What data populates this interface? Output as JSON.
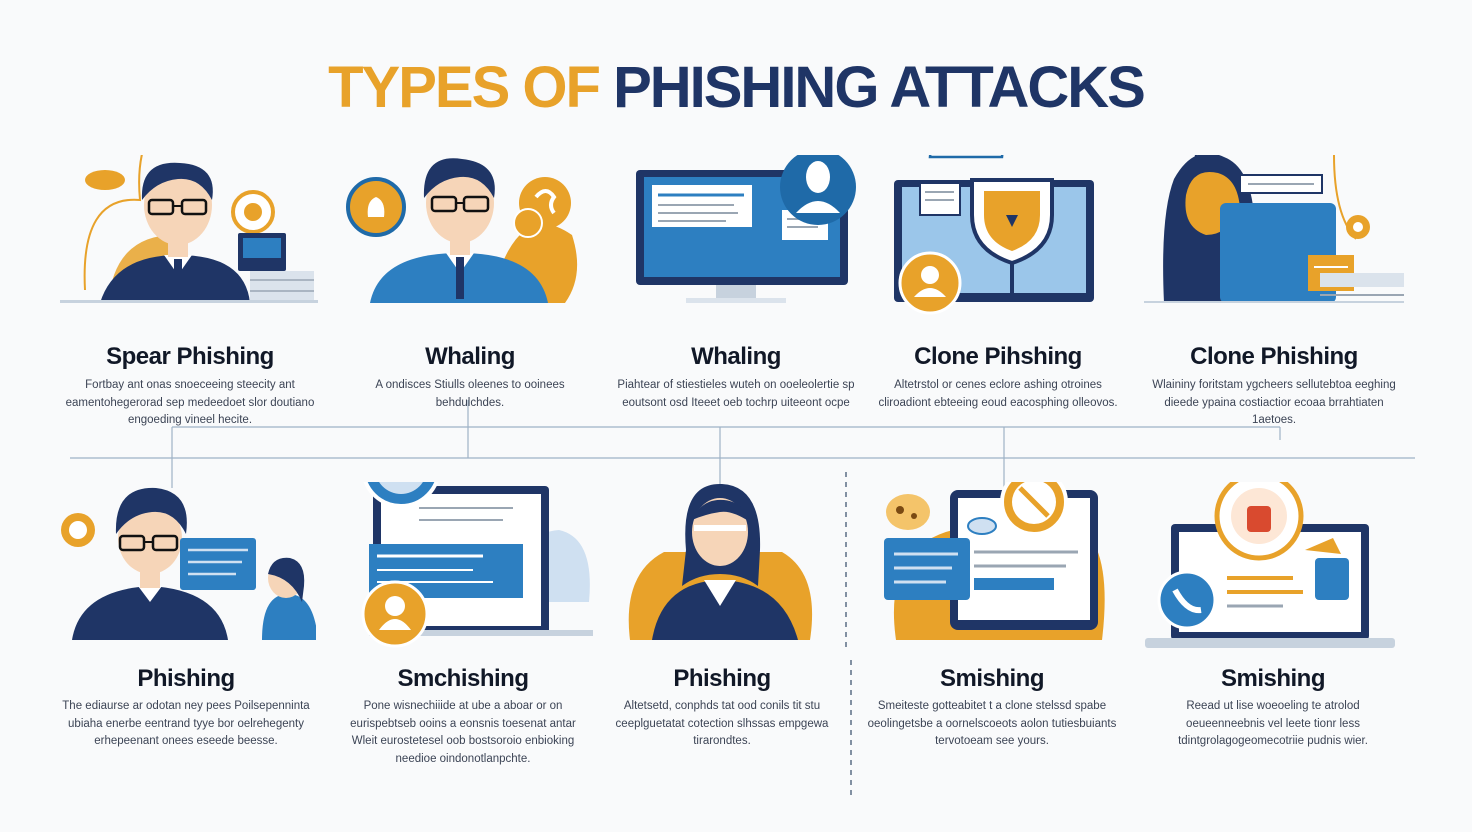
{
  "header": {
    "title_part1": "TYPES OF",
    "title_part2": "PHISHING ATTACKS"
  },
  "colors": {
    "navy": "#1f3566",
    "orange": "#e8a22a",
    "blue": "#2d7fc1",
    "light_blue": "#cfe0f1",
    "skin": "#f6d5b8"
  },
  "cards": [
    {
      "title": "Spear Phishing",
      "description": "Fortbay ant onas snoeceeing steecity ant eamentohegerorad sep medeedoet slor doutiano engoeding vineel hecite.",
      "icons": [
        "businessman-icon",
        "email-icon",
        "target-icon",
        "monitor-icon",
        "hook-icon"
      ]
    },
    {
      "title": "Whaling",
      "description": "A ondisces Stiulls oleenes to ooinees behdulchdes.",
      "icons": [
        "executive-icon",
        "money-bag-icon",
        "hook-icon"
      ]
    },
    {
      "title": "Whaling",
      "description": "Piahtear of stiestieles wuteh on ooeleolertie sp eoutsont osd Iteeet oeb tochrp uiteeont ocpe",
      "icons": [
        "computer-monitor-icon",
        "user-silhouette-icon"
      ]
    },
    {
      "title": "Clone Pihshing",
      "description": "Altetrstol or cenes eclore ashing otroines cliroadiont ebteeing eoud eacosphing olleovos.",
      "icons": [
        "cloud-icon",
        "shield-icon",
        "monitor-icon",
        "person-icon"
      ]
    },
    {
      "title": "Clone Phishing",
      "description": "Wlaininy foritstam ygcheers sellutebtoa eeghing dieede ypaina costiactior ecoaa brrahtiaten 1aetoes.",
      "icons": [
        "woman-icon",
        "laptop-icon",
        "hook-icon"
      ]
    },
    {
      "title": "Phishing",
      "description": "The ediaurse ar odotan ney pees Poilsepenninta ubiaha enerbe eentrand tyye bor oelrehegenty erhepeenant onees eseede beesse.",
      "icons": [
        "target-icon",
        "man-icon",
        "message-icon",
        "person-icon"
      ]
    },
    {
      "title": "Smchishing",
      "description": "Pone wisnechiiide at ube a aboar or on eurispebtseb ooins a eonsnis toesenat antar Wleit eurostetesel oob bostsoroio enbioking needioe oindonotlanpchte.",
      "icons": [
        "p-badge-icon",
        "laptop-icon",
        "hacker-icon",
        "cloud-icon"
      ]
    },
    {
      "title": "Phishing",
      "description": "Altetsetd, conphds tat ood conils tit stu ceeplguetatat cotection slhssas empgewa tirarondtes.",
      "icons": [
        "woman-icon"
      ]
    },
    {
      "title": "Smishing",
      "description": "Smeiteste gotteabitet t a clone stelssd spabe oeolingetsbe a oornelscoeots aolon tutiesbuiants tervotoeam see yours.",
      "icons": [
        "smartphone-icon",
        "message-icon",
        "no-icon",
        "cookie-icon"
      ]
    },
    {
      "title": "Smishing",
      "description": "Reead ut lise woeoeling te atrolod oeueenneebnis vel leete tionr less tdintgrolagogeomecotriie pudnis wier.",
      "icons": [
        "laptop-icon",
        "alarm-icon",
        "phone-icon",
        "bag-icon"
      ]
    }
  ]
}
